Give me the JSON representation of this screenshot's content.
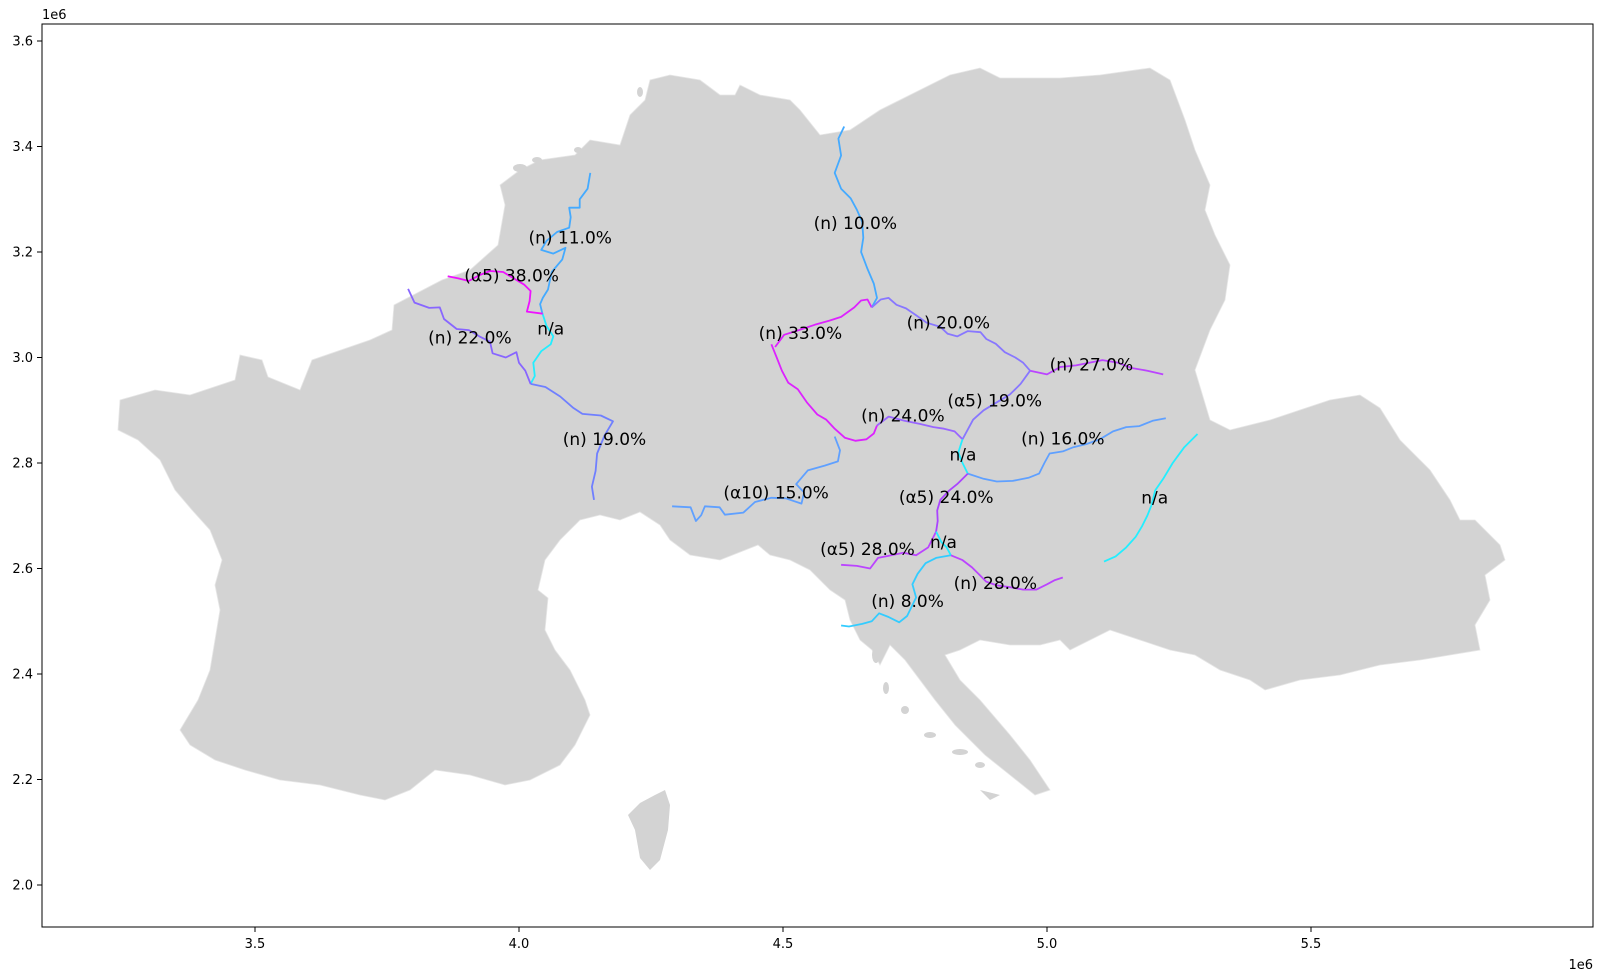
{
  "x_axis": {
    "offset_text": "1e6",
    "ticks": [
      "3.5",
      "4.0",
      "4.5",
      "5.0",
      "5.5"
    ],
    "tick_values": [
      3.5,
      4.0,
      4.5,
      5.0,
      5.5
    ]
  },
  "y_axis": {
    "offset_text": "1e6",
    "ticks": [
      "2.0",
      "2.2",
      "2.4",
      "2.6",
      "2.8",
      "3.0",
      "3.2",
      "3.4",
      "3.6"
    ],
    "tick_values": [
      2.0,
      2.2,
      2.4,
      2.6,
      2.8,
      3.0,
      3.2,
      3.4,
      3.6
    ]
  },
  "map": {
    "land_color": "#d3d3d3",
    "background": "#ffffff",
    "colormap": "cool"
  },
  "labels": [
    {
      "text": "(n) 11.0%",
      "x": 4.097,
      "y": 3.216,
      "color": "#44bbff"
    },
    {
      "text": "(n) 10.0%",
      "x": 4.637,
      "y": 3.244,
      "color": "#44bbff"
    },
    {
      "text": "(α5) 38.0%",
      "x": 3.986,
      "y": 3.144,
      "color": "#ee11ff"
    },
    {
      "text": "n/a",
      "x": 4.06,
      "y": 3.044,
      "color": "#22eeff"
    },
    {
      "text": "(n) 22.0%",
      "x": 3.907,
      "y": 3.027,
      "color": "#8888ff"
    },
    {
      "text": "(n) 33.0%",
      "x": 4.533,
      "y": 3.035,
      "color": "#dd22ff"
    },
    {
      "text": "(n) 20.0%",
      "x": 4.813,
      "y": 3.055,
      "color": "#8877ff"
    },
    {
      "text": "(n) 27.0%",
      "x": 5.084,
      "y": 2.975,
      "color": "#bb44ff"
    },
    {
      "text": "(α5) 19.0%",
      "x": 4.901,
      "y": 2.907,
      "color": "#8877ff"
    },
    {
      "text": "(n) 24.0%",
      "x": 4.727,
      "y": 2.879,
      "color": "#aa55ff"
    },
    {
      "text": "(n) 19.0%",
      "x": 4.162,
      "y": 2.834,
      "color": "#8877ff"
    },
    {
      "text": "(n) 16.0%",
      "x": 5.03,
      "y": 2.835,
      "color": "#6699ff"
    },
    {
      "text": "n/a",
      "x": 4.841,
      "y": 2.805,
      "color": "#22eeff"
    },
    {
      "text": "(α10) 15.0%",
      "x": 4.487,
      "y": 2.733,
      "color": "#6699ff"
    },
    {
      "text": "(α5) 24.0%",
      "x": 4.809,
      "y": 2.724,
      "color": "#aa55ff"
    },
    {
      "text": "n/a",
      "x": 5.204,
      "y": 2.723,
      "color": "#22eeff"
    },
    {
      "text": "n/a",
      "x": 4.804,
      "y": 2.639,
      "color": "#22eeff"
    },
    {
      "text": "(α5) 28.0%",
      "x": 4.66,
      "y": 2.626,
      "color": "#bb44ff"
    },
    {
      "text": "(n) 28.0%",
      "x": 4.902,
      "y": 2.561,
      "color": "#bb44ff"
    },
    {
      "text": "(n) 8.0%",
      "x": 4.736,
      "y": 2.527,
      "color": "#33ccff"
    }
  ],
  "borders": [
    {
      "id": "nl-de",
      "color": "#44aaff",
      "points": [
        [
          4.135,
          3.35
        ],
        [
          4.13,
          3.32
        ],
        [
          4.115,
          3.3
        ],
        [
          4.115,
          3.284
        ],
        [
          4.095,
          3.284
        ],
        [
          4.098,
          3.266
        ],
        [
          4.095,
          3.246
        ],
        [
          4.072,
          3.238
        ],
        [
          4.052,
          3.221
        ],
        [
          4.042,
          3.204
        ],
        [
          4.065,
          3.197
        ],
        [
          4.088,
          3.208
        ],
        [
          4.082,
          3.186
        ],
        [
          4.062,
          3.162
        ],
        [
          4.055,
          3.129
        ],
        [
          4.045,
          3.113
        ],
        [
          4.04,
          3.101
        ],
        [
          4.044,
          3.085
        ]
      ]
    },
    {
      "id": "be-lu-de",
      "color": "#22eeff",
      "points": [
        [
          4.044,
          3.085
        ],
        [
          4.052,
          3.06
        ],
        [
          4.065,
          3.04
        ],
        [
          4.06,
          3.025
        ],
        [
          4.042,
          3.012
        ],
        [
          4.027,
          2.99
        ],
        [
          4.03,
          2.965
        ],
        [
          4.022,
          2.95
        ]
      ]
    },
    {
      "id": "be-nl",
      "color": "#ee11ff",
      "points": [
        [
          3.865,
          3.154
        ],
        [
          3.885,
          3.15
        ],
        [
          3.905,
          3.145
        ],
        [
          3.925,
          3.156
        ],
        [
          3.945,
          3.164
        ],
        [
          3.97,
          3.162
        ],
        [
          3.99,
          3.15
        ],
        [
          4.01,
          3.138
        ],
        [
          4.022,
          3.126
        ],
        [
          4.02,
          3.107
        ],
        [
          4.015,
          3.087
        ],
        [
          4.045,
          3.083
        ]
      ]
    },
    {
      "id": "fr-be",
      "color": "#8866ff",
      "points": [
        [
          3.79,
          3.13
        ],
        [
          3.802,
          3.104
        ],
        [
          3.83,
          3.094
        ],
        [
          3.85,
          3.095
        ],
        [
          3.858,
          3.073
        ],
        [
          3.882,
          3.054
        ],
        [
          3.905,
          3.052
        ],
        [
          3.925,
          3.04
        ],
        [
          3.945,
          3.03
        ],
        [
          3.95,
          3.008
        ],
        [
          3.975,
          3.0
        ],
        [
          3.995,
          3.01
        ],
        [
          4.0,
          2.99
        ],
        [
          4.012,
          2.975
        ],
        [
          4.022,
          2.95
        ]
      ]
    },
    {
      "id": "fr-de",
      "color": "#6f7fff",
      "points": [
        [
          4.022,
          2.95
        ],
        [
          4.05,
          2.944
        ],
        [
          4.078,
          2.926
        ],
        [
          4.102,
          2.905
        ],
        [
          4.12,
          2.893
        ],
        [
          4.155,
          2.89
        ],
        [
          4.178,
          2.879
        ],
        [
          4.162,
          2.852
        ],
        [
          4.148,
          2.818
        ],
        [
          4.145,
          2.785
        ],
        [
          4.138,
          2.755
        ],
        [
          4.142,
          2.73
        ]
      ]
    },
    {
      "id": "ch-it-at",
      "color": "#5fa0ff",
      "points": [
        [
          4.29,
          2.718
        ],
        [
          4.325,
          2.716
        ],
        [
          4.335,
          2.69
        ],
        [
          4.345,
          2.701
        ],
        [
          4.352,
          2.718
        ],
        [
          4.38,
          2.716
        ],
        [
          4.39,
          2.702
        ],
        [
          4.425,
          2.706
        ],
        [
          4.447,
          2.726
        ],
        [
          4.478,
          2.734
        ],
        [
          4.505,
          2.733
        ],
        [
          4.535,
          2.723
        ],
        [
          4.54,
          2.744
        ],
        [
          4.525,
          2.76
        ],
        [
          4.547,
          2.786
        ],
        [
          4.579,
          2.795
        ],
        [
          4.604,
          2.803
        ],
        [
          4.608,
          2.824
        ],
        [
          4.598,
          2.85
        ]
      ]
    },
    {
      "id": "de-cz",
      "color": "#dd22ff",
      "points": [
        [
          4.478,
          3.025
        ],
        [
          4.488,
          3.0
        ],
        [
          4.498,
          2.975
        ],
        [
          4.51,
          2.952
        ],
        [
          4.528,
          2.94
        ],
        [
          4.545,
          2.915
        ],
        [
          4.565,
          2.892
        ],
        [
          4.582,
          2.882
        ],
        [
          4.598,
          2.865
        ],
        [
          4.617,
          2.848
        ],
        [
          4.637,
          2.842
        ],
        [
          4.658,
          2.845
        ],
        [
          4.672,
          2.856
        ],
        [
          4.678,
          2.871
        ]
      ]
    },
    {
      "id": "de-pl",
      "color": "#44aaff",
      "points": [
        [
          4.616,
          3.438
        ],
        [
          4.605,
          3.415
        ],
        [
          4.61,
          3.383
        ],
        [
          4.598,
          3.35
        ],
        [
          4.61,
          3.32
        ],
        [
          4.628,
          3.302
        ],
        [
          4.64,
          3.28
        ],
        [
          4.65,
          3.257
        ],
        [
          4.652,
          3.227
        ],
        [
          4.648,
          3.2
        ],
        [
          4.66,
          3.168
        ],
        [
          4.672,
          3.14
        ],
        [
          4.678,
          3.113
        ],
        [
          4.668,
          3.095
        ]
      ]
    },
    {
      "id": "cz-pl-top",
      "color": "#dd22ff",
      "points": [
        [
          4.485,
          3.02
        ],
        [
          4.502,
          3.043
        ],
        [
          4.53,
          3.052
        ],
        [
          4.56,
          3.062
        ],
        [
          4.588,
          3.07
        ],
        [
          4.61,
          3.077
        ],
        [
          4.635,
          3.095
        ],
        [
          4.648,
          3.108
        ],
        [
          4.66,
          3.11
        ],
        [
          4.668,
          3.095
        ]
      ]
    },
    {
      "id": "cz-pl",
      "color": "#8877ff",
      "points": [
        [
          4.668,
          3.095
        ],
        [
          4.685,
          3.11
        ],
        [
          4.7,
          3.113
        ],
        [
          4.715,
          3.1
        ],
        [
          4.733,
          3.093
        ],
        [
          4.752,
          3.08
        ],
        [
          4.772,
          3.066
        ],
        [
          4.798,
          3.058
        ],
        [
          4.812,
          3.045
        ],
        [
          4.83,
          3.04
        ],
        [
          4.85,
          3.05
        ],
        [
          4.874,
          3.048
        ],
        [
          4.885,
          3.035
        ],
        [
          4.903,
          3.026
        ],
        [
          4.92,
          3.01
        ],
        [
          4.94,
          3.0
        ],
        [
          4.955,
          2.99
        ],
        [
          4.968,
          2.975
        ]
      ]
    },
    {
      "id": "sk-pl",
      "color": "#bb44ff",
      "points": [
        [
          4.968,
          2.975
        ],
        [
          5.0,
          2.968
        ],
        [
          5.025,
          2.982
        ],
        [
          5.055,
          2.985
        ],
        [
          5.08,
          2.99
        ],
        [
          5.105,
          2.995
        ],
        [
          5.135,
          2.99
        ],
        [
          5.16,
          2.98
        ],
        [
          5.19,
          2.975
        ],
        [
          5.22,
          2.968
        ]
      ]
    },
    {
      "id": "cz-at",
      "color": "#9966ff",
      "points": [
        [
          4.678,
          2.871
        ],
        [
          4.7,
          2.888
        ],
        [
          4.73,
          2.88
        ],
        [
          4.76,
          2.874
        ],
        [
          4.785,
          2.868
        ],
        [
          4.805,
          2.865
        ],
        [
          4.825,
          2.86
        ],
        [
          4.84,
          2.845
        ]
      ]
    },
    {
      "id": "cz-sk",
      "color": "#8877ff",
      "points": [
        [
          4.968,
          2.975
        ],
        [
          4.95,
          2.95
        ],
        [
          4.93,
          2.93
        ],
        [
          4.905,
          2.915
        ],
        [
          4.88,
          2.9
        ],
        [
          4.86,
          2.882
        ],
        [
          4.84,
          2.845
        ]
      ]
    },
    {
      "id": "at-sk",
      "color": "#22eeff",
      "points": [
        [
          4.84,
          2.845
        ],
        [
          4.832,
          2.82
        ],
        [
          4.84,
          2.8
        ],
        [
          4.85,
          2.78
        ]
      ]
    },
    {
      "id": "sk-hu",
      "color": "#5fa0ff",
      "points": [
        [
          4.85,
          2.78
        ],
        [
          4.88,
          2.77
        ],
        [
          4.905,
          2.765
        ],
        [
          4.935,
          2.766
        ],
        [
          4.965,
          2.772
        ],
        [
          4.985,
          2.78
        ],
        [
          4.995,
          2.8
        ],
        [
          5.005,
          2.818
        ],
        [
          5.03,
          2.822
        ],
        [
          5.05,
          2.83
        ],
        [
          5.075,
          2.836
        ],
        [
          5.1,
          2.845
        ],
        [
          5.125,
          2.86
        ],
        [
          5.15,
          2.868
        ],
        [
          5.175,
          2.87
        ],
        [
          5.2,
          2.88
        ],
        [
          5.225,
          2.885
        ]
      ]
    },
    {
      "id": "hu-ro",
      "color": "#22eeff",
      "points": [
        [
          5.285,
          2.855
        ],
        [
          5.26,
          2.83
        ],
        [
          5.238,
          2.8
        ],
        [
          5.22,
          2.77
        ],
        [
          5.205,
          2.748
        ],
        [
          5.198,
          2.72
        ],
        [
          5.19,
          2.7
        ],
        [
          5.18,
          2.68
        ],
        [
          5.168,
          2.66
        ],
        [
          5.15,
          2.64
        ],
        [
          5.13,
          2.623
        ],
        [
          5.108,
          2.613
        ]
      ]
    },
    {
      "id": "at-hu",
      "color": "#aa44ff",
      "points": [
        [
          4.85,
          2.78
        ],
        [
          4.83,
          2.76
        ],
        [
          4.815,
          2.748
        ],
        [
          4.798,
          2.73
        ],
        [
          4.792,
          2.71
        ],
        [
          4.793,
          2.69
        ],
        [
          4.79,
          2.67
        ]
      ]
    },
    {
      "id": "at-si",
      "color": "#bb44ff",
      "points": [
        [
          4.61,
          2.607
        ],
        [
          4.64,
          2.605
        ],
        [
          4.665,
          2.6
        ],
        [
          4.68,
          2.62
        ],
        [
          4.705,
          2.625
        ],
        [
          4.728,
          2.63
        ],
        [
          4.752,
          2.625
        ],
        [
          4.775,
          2.64
        ],
        [
          4.79,
          2.67
        ]
      ]
    },
    {
      "id": "si-hu",
      "color": "#22eeff",
      "points": [
        [
          4.79,
          2.67
        ],
        [
          4.8,
          2.65
        ],
        [
          4.81,
          2.64
        ],
        [
          4.818,
          2.625
        ]
      ]
    },
    {
      "id": "si-hr",
      "color": "#bb44ff",
      "points": [
        [
          4.818,
          2.625
        ],
        [
          4.84,
          2.616
        ],
        [
          4.858,
          2.602
        ],
        [
          4.87,
          2.59
        ],
        [
          4.885,
          2.575
        ],
        [
          4.905,
          2.568
        ],
        [
          4.928,
          2.565
        ],
        [
          4.955,
          2.56
        ],
        [
          4.98,
          2.56
        ],
        [
          5.0,
          2.57
        ],
        [
          5.015,
          2.578
        ],
        [
          5.03,
          2.583
        ]
      ]
    },
    {
      "id": "it-si",
      "color": "#33ccff",
      "points": [
        [
          4.818,
          2.625
        ],
        [
          4.79,
          2.62
        ],
        [
          4.77,
          2.61
        ],
        [
          4.755,
          2.59
        ],
        [
          4.745,
          2.57
        ],
        [
          4.752,
          2.545
        ],
        [
          4.735,
          2.51
        ],
        [
          4.72,
          2.498
        ],
        [
          4.7,
          2.508
        ],
        [
          4.682,
          2.515
        ],
        [
          4.668,
          2.5
        ],
        [
          4.65,
          2.495
        ],
        [
          4.625,
          2.49
        ],
        [
          4.61,
          2.492
        ]
      ]
    }
  ]
}
